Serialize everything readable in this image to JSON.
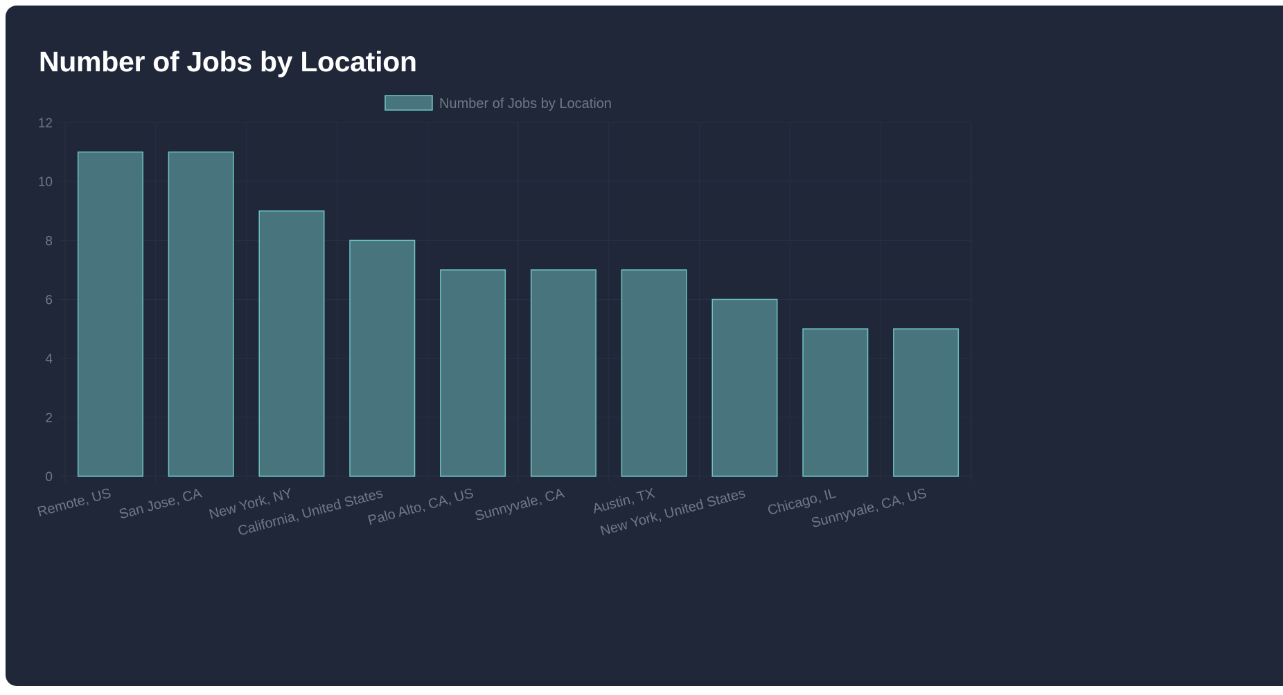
{
  "card": {
    "title": "Number of Jobs by Location"
  },
  "colors": {
    "card_background": "#1f2739",
    "bar_fill": "#48747d",
    "bar_border": "#6fc2c4",
    "grid": "#283044",
    "tick_text": "#717784",
    "title_text": "#ffffff"
  },
  "chart_data": {
    "type": "bar",
    "categories": [
      "Remote, US",
      "San Jose, CA",
      "New York, NY",
      "California, United States",
      "Palo Alto, CA, US",
      "Sunnyvale, CA",
      "Austin, TX",
      "New York, United States",
      "Chicago, IL",
      "Sunnyvale, CA, US"
    ],
    "series": [
      {
        "name": "Number of Jobs by Location",
        "values": [
          11,
          11,
          9,
          8,
          7,
          7,
          7,
          6,
          5,
          5
        ]
      }
    ],
    "ylim": [
      0,
      12
    ],
    "yticks": [
      0,
      2,
      4,
      6,
      8,
      10,
      12
    ],
    "grid": true,
    "legend_position": "top"
  }
}
